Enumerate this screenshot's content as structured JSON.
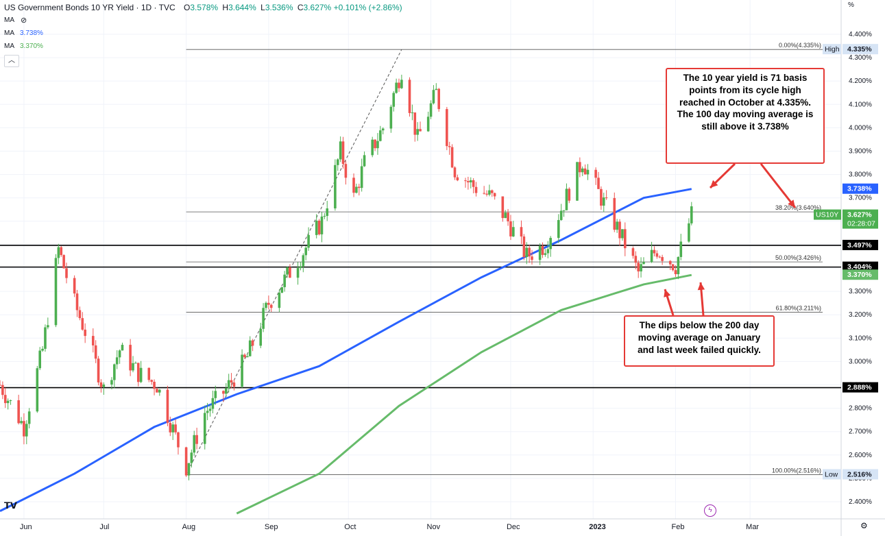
{
  "header": {
    "title": "US Government Bonds 10 YR Yield · 1D · TVC",
    "o_label": "O",
    "o_value": "3.578%",
    "h_label": "H",
    "h_value": "3.644%",
    "l_label": "L",
    "l_value": "3.536%",
    "c_label": "C",
    "c_value": "3.627%",
    "change": "+0.101% (+2.86%)"
  },
  "indicators": [
    {
      "label": "MA",
      "value": ""
    },
    {
      "label": "MA",
      "value": "3.738%"
    },
    {
      "label": "MA",
      "value": "3.370%"
    }
  ],
  "axis_unit": "%",
  "annotations": {
    "top_callout": "The 10 year yield is 71 basis points from its cycle high reached in October at 4.335%. The 100 day moving average is still above it 3.738%",
    "bottom_callout": "The dips below the 200 day moving average on January and last week failed quickly."
  },
  "colors": {
    "up": "#4caf50",
    "down": "#ef5350",
    "ma100": "#2962ff",
    "ma200": "#66bb6a",
    "callout_border": "#e53935",
    "last_price_bg": "#089981"
  },
  "icons": {
    "eye": "eye-off-icon",
    "collapse": "chevron-up-icon",
    "settings": "gear-icon",
    "flash": "flash-icon",
    "logo": "tv-logo-icon"
  },
  "chart_data": {
    "type": "candlestick",
    "title": "US Government Bonds 10 YR Yield · 1D · TVC",
    "y_unit": "%",
    "ylim": [
      2.35,
      4.45
    ],
    "y_ticks": [
      "4.400%",
      "4.300%",
      "4.200%",
      "4.100%",
      "4.000%",
      "3.900%",
      "3.800%",
      "3.700%",
      "3.600%",
      "3.500%",
      "3.400%",
      "3.300%",
      "3.200%",
      "3.100%",
      "3.000%",
      "2.900%",
      "2.800%",
      "2.700%",
      "2.600%",
      "2.500%",
      "2.400%"
    ],
    "x_ticks": [
      "Jun",
      "Jul",
      "Aug",
      "Sep",
      "Oct",
      "Nov",
      "Dec",
      "2023",
      "Feb",
      "Mar"
    ],
    "grid": true,
    "anchors": [
      [
        "2022-05-23",
        2.9
      ],
      [
        "2022-06-01",
        2.72
      ],
      [
        "2022-06-08",
        3.05
      ],
      [
        "2022-06-14",
        3.48
      ],
      [
        "2022-06-20",
        3.25
      ],
      [
        "2022-06-25",
        3.1
      ],
      [
        "2022-07-01",
        2.88
      ],
      [
        "2022-07-07",
        3.05
      ],
      [
        "2022-07-14",
        2.95
      ],
      [
        "2022-07-21",
        2.9
      ],
      [
        "2022-08-01",
        2.55
      ],
      [
        "2022-08-08",
        2.78
      ],
      [
        "2022-08-16",
        2.88
      ],
      [
        "2022-08-24",
        3.02
      ],
      [
        "2022-09-01",
        3.25
      ],
      [
        "2022-09-13",
        3.45
      ],
      [
        "2022-09-21",
        3.6
      ],
      [
        "2022-09-28",
        3.9
      ],
      [
        "2022-10-03",
        3.7
      ],
      [
        "2022-10-07",
        3.85
      ],
      [
        "2022-10-14",
        4.0
      ],
      [
        "2022-10-21",
        4.25
      ],
      [
        "2022-10-27",
        3.95
      ],
      [
        "2022-11-03",
        4.15
      ],
      [
        "2022-11-10",
        3.82
      ],
      [
        "2022-11-17",
        3.75
      ],
      [
        "2022-11-24",
        3.7
      ],
      [
        "2022-11-30",
        3.6
      ],
      [
        "2022-12-07",
        3.45
      ],
      [
        "2022-12-14",
        3.5
      ],
      [
        "2022-12-21",
        3.68
      ],
      [
        "2022-12-28",
        3.86
      ],
      [
        "2023-01-04",
        3.7
      ],
      [
        "2023-01-11",
        3.55
      ],
      [
        "2023-01-18",
        3.38
      ],
      [
        "2023-01-25",
        3.48
      ],
      [
        "2023-02-01",
        3.41
      ],
      [
        "2023-02-07",
        3.627
      ]
    ],
    "series": [
      {
        "name": "MA",
        "value_label": "3.738%",
        "points": [
          [
            "2022-05-23",
            2.36
          ],
          [
            "2022-06-20",
            2.52
          ],
          [
            "2022-07-20",
            2.72
          ],
          [
            "2022-08-20",
            2.86
          ],
          [
            "2022-09-20",
            2.98
          ],
          [
            "2022-10-20",
            3.17
          ],
          [
            "2022-11-20",
            3.36
          ],
          [
            "2022-12-20",
            3.52
          ],
          [
            "2023-01-20",
            3.7
          ],
          [
            "2023-02-07",
            3.738
          ]
        ]
      },
      {
        "name": "MA",
        "value_label": "3.370%",
        "points": [
          [
            "2022-08-20",
            2.35
          ],
          [
            "2022-09-20",
            2.52
          ],
          [
            "2022-10-20",
            2.81
          ],
          [
            "2022-11-20",
            3.04
          ],
          [
            "2022-12-20",
            3.22
          ],
          [
            "2023-01-20",
            3.33
          ],
          [
            "2023-02-07",
            3.37
          ]
        ]
      }
    ],
    "fib_levels": [
      {
        "label": "0.00%(4.335%)",
        "value": 4.335
      },
      {
        "label": "38.20%(3.640%)",
        "value": 3.64
      },
      {
        "label": "50.00%(3.426%)",
        "value": 3.426
      },
      {
        "label": "61.80%(3.211%)",
        "value": 3.211
      },
      {
        "label": "100.00%(2.516%)",
        "value": 2.516
      }
    ],
    "horizontal_lines": [
      3.497,
      3.404,
      2.888
    ],
    "trend_line": [
      [
        "2022-08-01",
        2.516
      ],
      [
        "2022-10-21",
        4.335
      ]
    ],
    "price_labels": [
      {
        "text": "High",
        "value": "4.335%",
        "y": 4.335
      },
      {
        "text": "",
        "value": "3.738%",
        "y": 3.738
      },
      {
        "text": "US10Y",
        "value": "3.627%",
        "sub": "02:28:07",
        "y": 3.627
      },
      {
        "text": "",
        "value": "3.497%",
        "y": 3.497
      },
      {
        "text": "",
        "value": "3.404%",
        "y": 3.404
      },
      {
        "text": "",
        "value": "3.370%",
        "y": 3.37
      },
      {
        "text": "",
        "value": "2.888%",
        "y": 2.888
      },
      {
        "text": "Low",
        "value": "2.516%",
        "y": 2.516
      }
    ]
  }
}
